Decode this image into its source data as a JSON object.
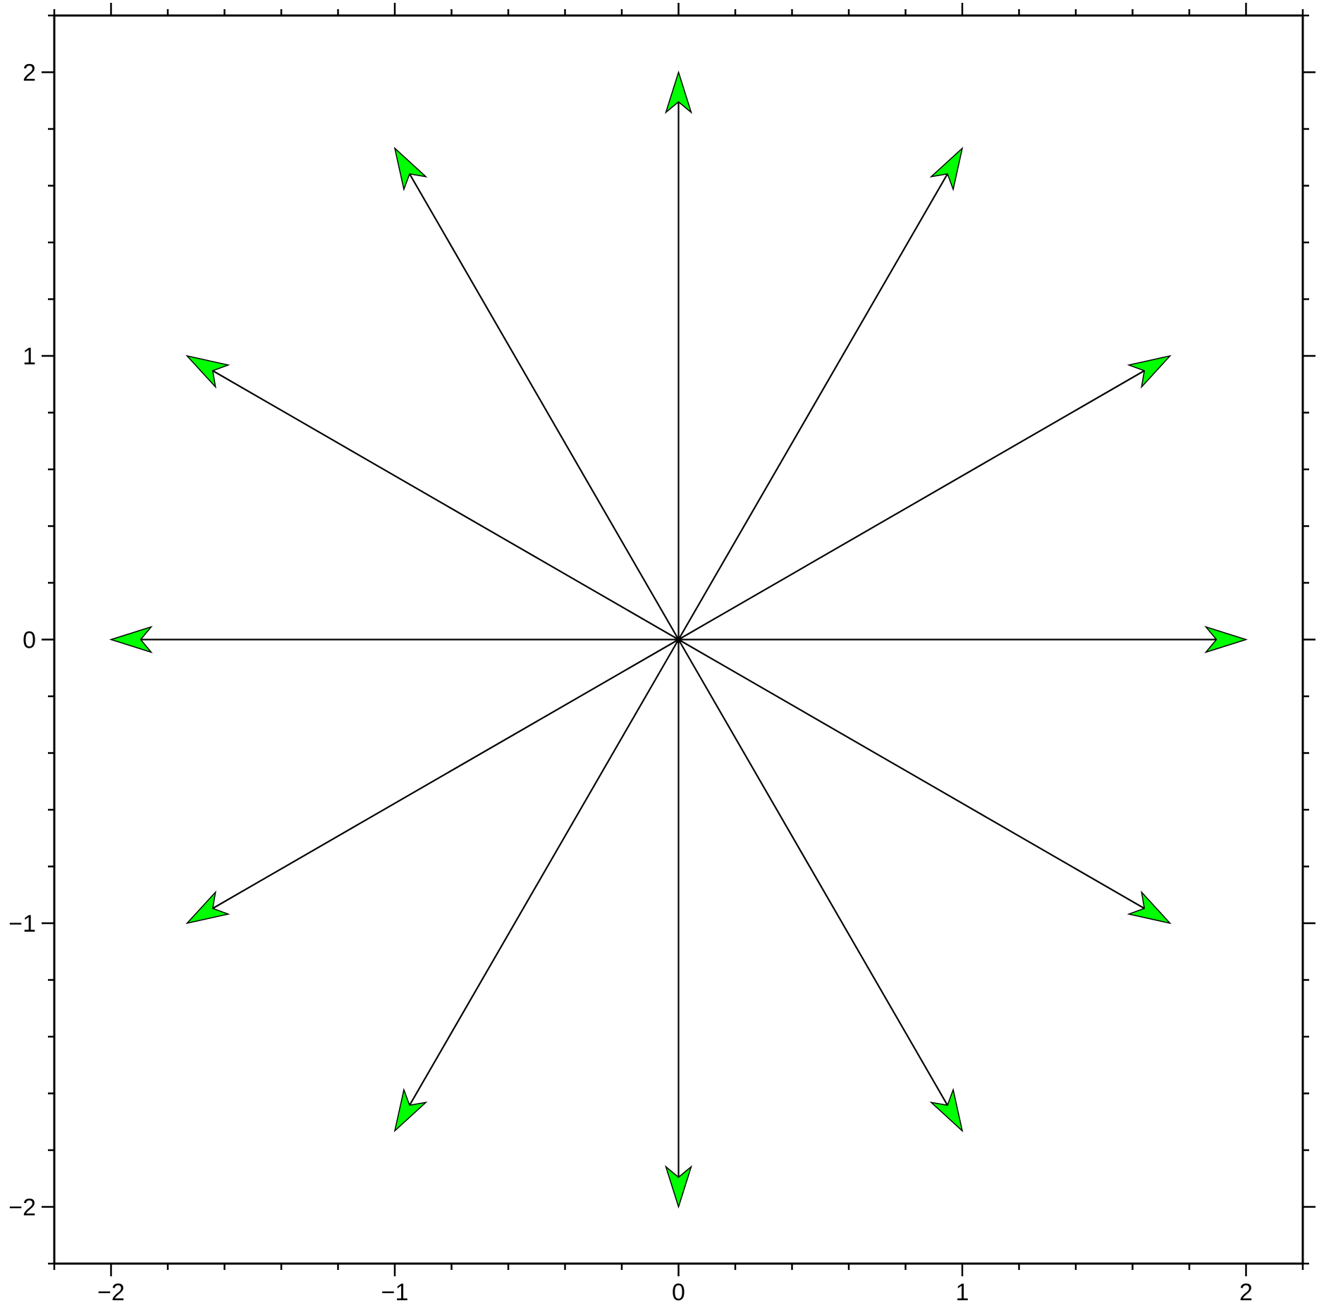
{
  "chart_data": {
    "type": "vector",
    "title": "",
    "xlabel": "",
    "ylabel": "",
    "xlim": [
      -2.2,
      2.2
    ],
    "ylim": [
      -2.2,
      2.2
    ],
    "xticks": [
      -2,
      -1,
      0,
      1,
      2
    ],
    "yticks": [
      -2,
      -1,
      0,
      1,
      2
    ],
    "xtick_labels": [
      "−2",
      "−1",
      "0",
      "1",
      "2"
    ],
    "ytick_labels": [
      "−2",
      "−1",
      "0",
      "1",
      "2"
    ],
    "minor_tick_step": 0.2,
    "grid": false,
    "origin": [
      0,
      0
    ],
    "vectors": [
      {
        "angle_deg": 0,
        "length": 2
      },
      {
        "angle_deg": 30,
        "length": 2
      },
      {
        "angle_deg": 60,
        "length": 2
      },
      {
        "angle_deg": 90,
        "length": 2
      },
      {
        "angle_deg": 120,
        "length": 2
      },
      {
        "angle_deg": 150,
        "length": 2
      },
      {
        "angle_deg": 180,
        "length": 2
      },
      {
        "angle_deg": 210,
        "length": 2
      },
      {
        "angle_deg": 240,
        "length": 2
      },
      {
        "angle_deg": 270,
        "length": 2
      },
      {
        "angle_deg": 300,
        "length": 2
      },
      {
        "angle_deg": 330,
        "length": 2
      }
    ],
    "colors": {
      "arrowhead_fill": "#00ff00",
      "line": "#000000",
      "frame": "#000000"
    }
  }
}
